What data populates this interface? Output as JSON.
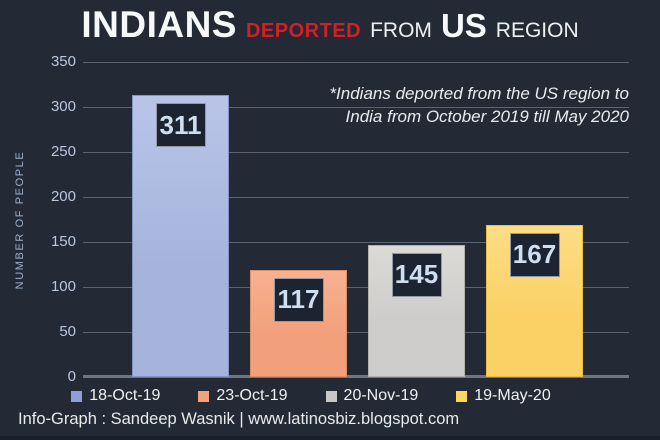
{
  "background_color": "#232a36",
  "title": {
    "part1": "INDIANS",
    "part2": "DEPORTED",
    "part3": "FROM",
    "part4": "US",
    "part5": "REGION",
    "accent_color": "#d21f26"
  },
  "annotation": {
    "line1": "*Indians deported from the US region to",
    "line2": "India from October 2019 till May 2020"
  },
  "y_axis": {
    "label": "NUMBER OF PEOPLE",
    "ticks": [
      350,
      300,
      250,
      200,
      150,
      100,
      50,
      0
    ]
  },
  "footer": "Info-Graph : Sandeep Wasnik | www.latinosbiz.blogspot.com",
  "chart_data": {
    "type": "bar",
    "title": "INDIANS DEPORTED FROM US REGION",
    "categories": [
      "18-Oct-19",
      "23-Oct-19",
      "20-Nov-19",
      "19-May-20"
    ],
    "values": [
      311,
      117,
      145,
      167
    ],
    "ylabel": "NUMBER OF PEOPLE",
    "ylim": [
      0,
      350
    ],
    "grid": true,
    "legend_position": "bottom",
    "series_styles": [
      {
        "fill": "#a6b4dc",
        "fill_light": "#b9c4e7",
        "edge": "#8294c9"
      },
      {
        "fill": "#f2a07b",
        "fill_light": "#f7b192",
        "edge": "#dd8d63"
      },
      {
        "fill": "#ceccca",
        "fill_light": "#dcdad7",
        "edge": "#b3b1ae"
      },
      {
        "fill": "#fbd165",
        "fill_light": "#fddd85",
        "edge": "#eabd47"
      }
    ],
    "legend_colors": [
      "#8e9ed6",
      "#f2a17c",
      "#c8c7c5",
      "#ffd65b"
    ]
  }
}
